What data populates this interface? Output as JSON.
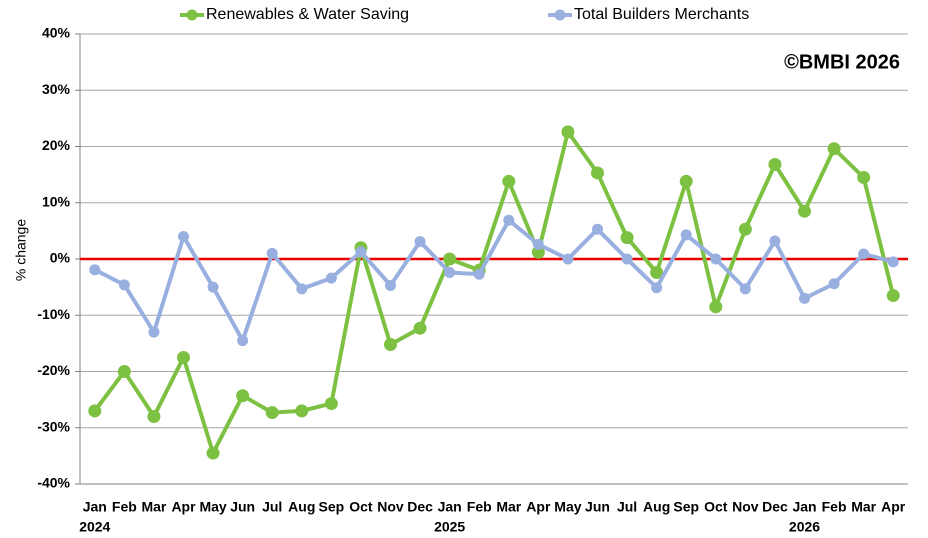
{
  "chart_data": {
    "type": "line",
    "y_label": "% change",
    "annotation": "©BMBI 2026",
    "categories": [
      "Jan",
      "Feb",
      "Mar",
      "Apr",
      "May",
      "Jun",
      "Jul",
      "Aug",
      "Sep",
      "Oct",
      "Nov",
      "Dec",
      "Jan",
      "Feb",
      "Mar",
      "Apr",
      "May",
      "Jun",
      "Jul",
      "Aug",
      "Sep",
      "Oct",
      "Nov",
      "Dec",
      "Jan",
      "Feb",
      "Mar",
      "Apr"
    ],
    "year_labels": [
      "2024",
      null,
      null,
      null,
      null,
      null,
      null,
      null,
      null,
      null,
      null,
      null,
      "2025",
      null,
      null,
      null,
      null,
      null,
      null,
      null,
      null,
      null,
      null,
      null,
      "2026",
      null,
      null,
      null
    ],
    "series": [
      {
        "name": "Renewables & Water Saving",
        "color": "#7dc142",
        "values": [
          -27,
          -20,
          -28,
          -17.5,
          -34.5,
          -24.3,
          -27.3,
          -27,
          -25.7,
          2,
          -15.2,
          -12.3,
          0,
          -2,
          13.8,
          1.2,
          22.6,
          15.3,
          3.8,
          -2.4,
          13.8,
          -8.5,
          5.3,
          16.8,
          8.5,
          19.6,
          14.5,
          -6.5
        ]
      },
      {
        "name": "Total Builders Merchants",
        "color": "#98afe0",
        "values": [
          -1.9,
          -4.6,
          -13,
          4,
          -5,
          -14.5,
          1,
          -5.3,
          -3.4,
          1.3,
          -4.7,
          3.1,
          -2.4,
          -2.7,
          6.9,
          2.6,
          0,
          5.3,
          0,
          -5.1,
          4.3,
          0,
          -5.3,
          3.2,
          -7,
          -4.4,
          0.9,
          -0.5
        ]
      }
    ],
    "ylim": [
      -40,
      40
    ],
    "yticks": [
      {
        "value": -40,
        "label": "-40%"
      },
      {
        "value": -30,
        "label": "-30%"
      },
      {
        "value": -20,
        "label": "-20%"
      },
      {
        "value": -10,
        "label": "-10%"
      },
      {
        "value": 0,
        "label": "0%"
      },
      {
        "value": 10,
        "label": "10%"
      },
      {
        "value": 20,
        "label": "20%"
      },
      {
        "value": 30,
        "label": "30%"
      },
      {
        "value": 40,
        "label": "40%"
      }
    ],
    "grid": true,
    "zero_line_color": "#e60000"
  }
}
